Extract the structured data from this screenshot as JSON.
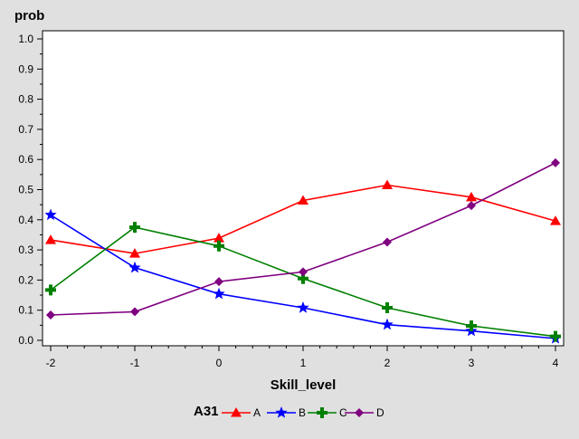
{
  "chart_data": {
    "type": "line",
    "ylabel": "prob",
    "xlabel": "Skill_level",
    "x": [
      -2,
      -1,
      0,
      1,
      2,
      3,
      4
    ],
    "xlim": [
      -2,
      4
    ],
    "ylim": [
      0,
      1
    ],
    "xticks": [
      "-2",
      "-1",
      "0",
      "1",
      "2",
      "3",
      "4"
    ],
    "yticks": [
      "0.0",
      "0.1",
      "0.2",
      "0.3",
      "0.4",
      "0.5",
      "0.6",
      "0.7",
      "0.8",
      "0.9",
      "1.0"
    ],
    "grid": false,
    "legend": {
      "title": "A31",
      "placement": "bottom"
    },
    "series": [
      {
        "name": "A",
        "color": "#ff0000",
        "marker": "triangle",
        "values": [
          0.333,
          0.288,
          0.339,
          0.464,
          0.515,
          0.475,
          0.396
        ]
      },
      {
        "name": "B",
        "color": "#0000ff",
        "marker": "star",
        "values": [
          0.416,
          0.241,
          0.154,
          0.108,
          0.052,
          0.031,
          0.006
        ]
      },
      {
        "name": "C",
        "color": "#008000",
        "marker": "plus",
        "values": [
          0.167,
          0.375,
          0.313,
          0.205,
          0.108,
          0.048,
          0.013
        ]
      },
      {
        "name": "D",
        "color": "#800080",
        "marker": "diamond",
        "values": [
          0.084,
          0.095,
          0.195,
          0.227,
          0.326,
          0.447,
          0.589
        ]
      }
    ]
  }
}
